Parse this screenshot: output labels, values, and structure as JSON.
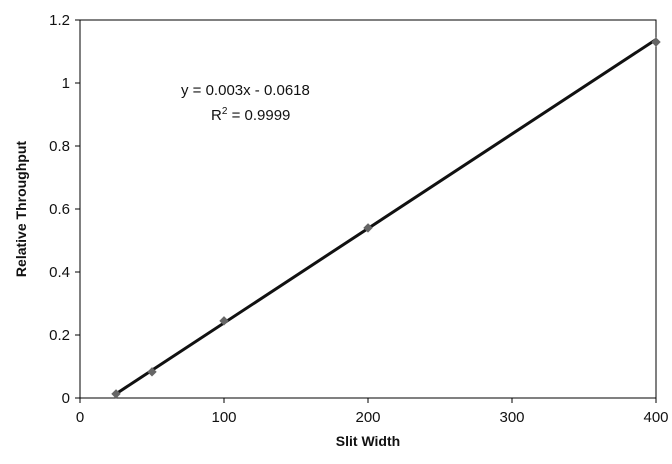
{
  "chart_data": {
    "type": "scatter",
    "xlabel": "Slit Width",
    "ylabel": "Relative Throughput",
    "xlim": [
      0,
      400
    ],
    "ylim": [
      0,
      1.2
    ],
    "x_ticks": [
      "0",
      "100",
      "200",
      "300",
      "400"
    ],
    "y_ticks": [
      "0",
      "0.2",
      "0.4",
      "0.6",
      "0.8",
      "1",
      "1.2"
    ],
    "grid": false,
    "legend": "none",
    "series": [
      {
        "points": [
          {
            "x": 25,
            "y": 0.013
          },
          {
            "x": 50,
            "y": 0.083
          },
          {
            "x": 100,
            "y": 0.245
          },
          {
            "x": 200,
            "y": 0.54
          },
          {
            "x": 400,
            "y": 1.13
          }
        ]
      }
    ],
    "trendline": {
      "slope": 0.003,
      "intercept": -0.0618,
      "x_range": [
        25,
        400
      ]
    },
    "annotations": {
      "equation": "y = 0.003x - 0.0618",
      "r2_prefix": "R",
      "r2_sup": "2",
      "r2_value": " = 0.9999"
    },
    "colors": {
      "line": "#111111",
      "marker": "#666666",
      "axes": "#000000"
    }
  }
}
